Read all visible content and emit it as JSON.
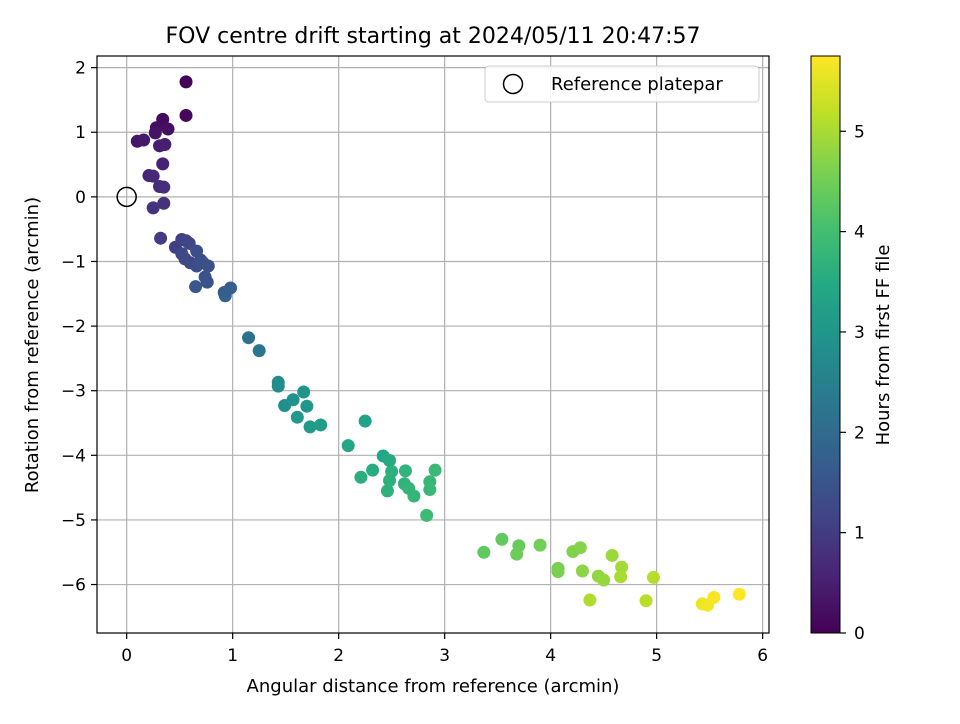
{
  "chart_data": {
    "type": "scatter",
    "title": "FOV centre drift starting at 2024/05/11 20:47:57",
    "xlabel": "Angular distance from reference (arcmin)",
    "ylabel": "Rotation from reference (arcmin)",
    "xlim": [
      -0.28,
      6.06
    ],
    "ylim": [
      -6.75,
      2.18
    ],
    "xticks": [
      0,
      1,
      2,
      3,
      4,
      5,
      6
    ],
    "yticks": [
      2,
      1,
      0,
      -1,
      -2,
      -3,
      -4,
      -5,
      -6
    ],
    "xtick_labels": [
      "0",
      "1",
      "2",
      "3",
      "4",
      "5",
      "6"
    ],
    "ytick_labels": [
      "2",
      "1",
      "0",
      "−1",
      "−2",
      "−3",
      "−4",
      "−5",
      "−6"
    ],
    "grid": true,
    "legend": {
      "position": "top-right",
      "label": "Reference platepar"
    },
    "reference_point": {
      "x": 0,
      "y": 0
    },
    "colorbar": {
      "label": "Hours from first FF file",
      "range": [
        0,
        5.75
      ],
      "ticks": [
        0,
        1,
        2,
        3,
        4,
        5
      ],
      "tick_labels": [
        "0",
        "1",
        "2",
        "3",
        "4",
        "5"
      ],
      "colormap": "viridis"
    },
    "points": [
      {
        "x": 0.56,
        "y": 1.78,
        "c": 0.05
      },
      {
        "x": 0.56,
        "y": 1.26,
        "c": 0.1
      },
      {
        "x": 0.34,
        "y": 1.2,
        "c": 0.15
      },
      {
        "x": 0.28,
        "y": 1.07,
        "c": 0.2
      },
      {
        "x": 0.39,
        "y": 1.05,
        "c": 0.25
      },
      {
        "x": 0.27,
        "y": 0.99,
        "c": 0.3
      },
      {
        "x": 0.1,
        "y": 0.86,
        "c": 0.35
      },
      {
        "x": 0.16,
        "y": 0.88,
        "c": 0.4
      },
      {
        "x": 0.31,
        "y": 0.79,
        "c": 0.45
      },
      {
        "x": 0.36,
        "y": 0.81,
        "c": 0.5
      },
      {
        "x": 0.34,
        "y": 0.51,
        "c": 0.55
      },
      {
        "x": 0.21,
        "y": 0.33,
        "c": 0.6
      },
      {
        "x": 0.25,
        "y": 0.32,
        "c": 0.65
      },
      {
        "x": 0.31,
        "y": 0.16,
        "c": 0.7
      },
      {
        "x": 0.35,
        "y": 0.15,
        "c": 0.75
      },
      {
        "x": 0.35,
        "y": -0.1,
        "c": 0.8
      },
      {
        "x": 0.25,
        "y": -0.17,
        "c": 0.85
      },
      {
        "x": 0.32,
        "y": -0.64,
        "c": 1.0
      },
      {
        "x": 0.46,
        "y": -0.78,
        "c": 1.05
      },
      {
        "x": 0.52,
        "y": -0.66,
        "c": 1.1
      },
      {
        "x": 0.56,
        "y": -0.68,
        "c": 1.15
      },
      {
        "x": 0.59,
        "y": -0.72,
        "c": 1.2
      },
      {
        "x": 0.52,
        "y": -0.88,
        "c": 1.22
      },
      {
        "x": 0.55,
        "y": -0.96,
        "c": 1.25
      },
      {
        "x": 0.6,
        "y": -1.02,
        "c": 1.28
      },
      {
        "x": 0.66,
        "y": -1.07,
        "c": 1.3
      },
      {
        "x": 0.7,
        "y": -0.98,
        "c": 1.32
      },
      {
        "x": 0.66,
        "y": -0.84,
        "c": 1.35
      },
      {
        "x": 0.72,
        "y": -1.02,
        "c": 1.38
      },
      {
        "x": 0.77,
        "y": -1.07,
        "c": 1.4
      },
      {
        "x": 0.74,
        "y": -1.24,
        "c": 1.45
      },
      {
        "x": 0.76,
        "y": -1.32,
        "c": 1.5
      },
      {
        "x": 0.65,
        "y": -1.39,
        "c": 1.55
      },
      {
        "x": 0.92,
        "y": -1.48,
        "c": 1.65
      },
      {
        "x": 0.98,
        "y": -1.41,
        "c": 1.7
      },
      {
        "x": 0.93,
        "y": -1.53,
        "c": 1.75
      },
      {
        "x": 1.15,
        "y": -2.18,
        "c": 2.15
      },
      {
        "x": 1.25,
        "y": -2.38,
        "c": 2.25
      },
      {
        "x": 1.43,
        "y": -2.87,
        "c": 2.75
      },
      {
        "x": 1.43,
        "y": -2.93,
        "c": 2.8
      },
      {
        "x": 1.49,
        "y": -3.23,
        "c": 2.85
      },
      {
        "x": 1.57,
        "y": -3.14,
        "c": 2.9
      },
      {
        "x": 1.67,
        "y": -3.02,
        "c": 2.95
      },
      {
        "x": 1.7,
        "y": -3.24,
        "c": 3.0
      },
      {
        "x": 1.61,
        "y": -3.41,
        "c": 3.05
      },
      {
        "x": 1.73,
        "y": -3.56,
        "c": 3.1
      },
      {
        "x": 1.83,
        "y": -3.53,
        "c": 3.15
      },
      {
        "x": 2.25,
        "y": -3.47,
        "c": 3.3
      },
      {
        "x": 2.09,
        "y": -3.85,
        "c": 3.4
      },
      {
        "x": 2.42,
        "y": -4.01,
        "c": 3.45
      },
      {
        "x": 2.48,
        "y": -4.08,
        "c": 3.5
      },
      {
        "x": 2.32,
        "y": -4.23,
        "c": 3.55
      },
      {
        "x": 2.21,
        "y": -4.34,
        "c": 3.6
      },
      {
        "x": 2.5,
        "y": -4.25,
        "c": 3.62
      },
      {
        "x": 2.48,
        "y": -4.39,
        "c": 3.65
      },
      {
        "x": 2.46,
        "y": -4.55,
        "c": 3.68
      },
      {
        "x": 2.62,
        "y": -4.44,
        "c": 3.7
      },
      {
        "x": 2.63,
        "y": -4.24,
        "c": 3.72
      },
      {
        "x": 2.66,
        "y": -4.51,
        "c": 3.75
      },
      {
        "x": 2.71,
        "y": -4.63,
        "c": 3.78
      },
      {
        "x": 2.86,
        "y": -4.41,
        "c": 3.8
      },
      {
        "x": 2.86,
        "y": -4.53,
        "c": 3.82
      },
      {
        "x": 2.91,
        "y": -4.23,
        "c": 3.85
      },
      {
        "x": 2.83,
        "y": -4.93,
        "c": 3.9
      },
      {
        "x": 3.37,
        "y": -5.5,
        "c": 4.3
      },
      {
        "x": 3.54,
        "y": -5.3,
        "c": 4.35
      },
      {
        "x": 3.7,
        "y": -5.4,
        "c": 4.4
      },
      {
        "x": 3.68,
        "y": -5.53,
        "c": 4.45
      },
      {
        "x": 3.9,
        "y": -5.39,
        "c": 4.5
      },
      {
        "x": 4.07,
        "y": -5.75,
        "c": 4.55
      },
      {
        "x": 4.07,
        "y": -5.8,
        "c": 4.6
      },
      {
        "x": 4.21,
        "y": -5.49,
        "c": 4.65
      },
      {
        "x": 4.28,
        "y": -5.43,
        "c": 4.7
      },
      {
        "x": 4.3,
        "y": -5.79,
        "c": 4.75
      },
      {
        "x": 4.45,
        "y": -5.87,
        "c": 4.8
      },
      {
        "x": 4.5,
        "y": -5.93,
        "c": 4.85
      },
      {
        "x": 4.58,
        "y": -5.55,
        "c": 4.9
      },
      {
        "x": 4.67,
        "y": -5.73,
        "c": 4.95
      },
      {
        "x": 4.66,
        "y": -5.88,
        "c": 5.0
      },
      {
        "x": 4.37,
        "y": -6.24,
        "c": 5.05
      },
      {
        "x": 4.97,
        "y": -5.89,
        "c": 5.1
      },
      {
        "x": 4.9,
        "y": -6.25,
        "c": 5.15
      },
      {
        "x": 5.43,
        "y": -6.3,
        "c": 5.6
      },
      {
        "x": 5.48,
        "y": -6.32,
        "c": 5.65
      },
      {
        "x": 5.54,
        "y": -6.2,
        "c": 5.7
      },
      {
        "x": 5.78,
        "y": -6.15,
        "c": 5.75
      }
    ]
  }
}
